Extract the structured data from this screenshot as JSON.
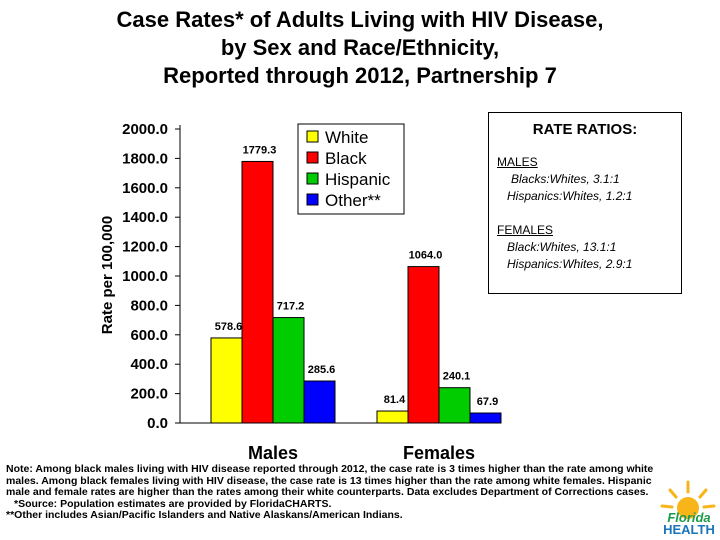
{
  "title": {
    "line1": "Case Rates* of Adults Living with HIV Disease,",
    "line2": "by Sex and Race/Ethnicity,",
    "line3": "Reported through 2012, Partnership 7"
  },
  "chart_data": {
    "type": "bar",
    "ylabel": "Rate per 100,000",
    "ylim": [
      0,
      2000
    ],
    "ytick_labels": [
      "0.0",
      "200.0",
      "400.0",
      "600.0",
      "800.0",
      "1000.0",
      "1200.0",
      "1400.0",
      "1600.0",
      "1800.0",
      "2000.0"
    ],
    "categories": [
      "Males",
      "Females"
    ],
    "series": [
      {
        "name": "White",
        "color": "#ffff00",
        "values": [
          578.6,
          81.4
        ],
        "labels": [
          "578.6",
          "81.4"
        ]
      },
      {
        "name": "Black",
        "color": "#ff0000",
        "values": [
          1779.3,
          1064.0
        ],
        "labels": [
          "1779.3",
          "1064.0"
        ]
      },
      {
        "name": "Hispanic",
        "color": "#00cc00",
        "values": [
          717.2,
          240.1
        ],
        "labels": [
          "717.2",
          "240.1"
        ]
      },
      {
        "name": "Other**",
        "color": "#0000ff",
        "values": [
          285.6,
          67.9
        ],
        "labels": [
          "285.6",
          "67.9"
        ]
      }
    ],
    "legend_position": "top-right"
  },
  "rate_ratios": {
    "title": "RATE RATIOS:",
    "males_heading": "MALES",
    "males_line1": "Blacks:Whites, 3.1:1",
    "males_line2": "Hispanics:Whites, 1.2:1",
    "females_heading": "FEMALES",
    "females_line1": "Black:Whites, 13.1:1",
    "females_line2": "Hispanics:Whites, 2.9:1"
  },
  "note": {
    "text": "Note: Among black males living with HIV disease reported through 2012, the case rate is 3 times higher than the rate among white males. Among black females living with HIV disease, the case rate is 13 times higher than the rate among white females. Hispanic male and female rates are higher than the rates among their white counterparts. Data excludes Department of Corrections cases.",
    "source": "*Source: Population estimates are provided by FloridaCHARTS.",
    "other": "**Other includes Asian/Pacific Islanders and Native Alaskans/American Indians."
  },
  "logo": {
    "line1": "Florida",
    "line2": "HEALTH",
    "color": "#1b75bb"
  }
}
